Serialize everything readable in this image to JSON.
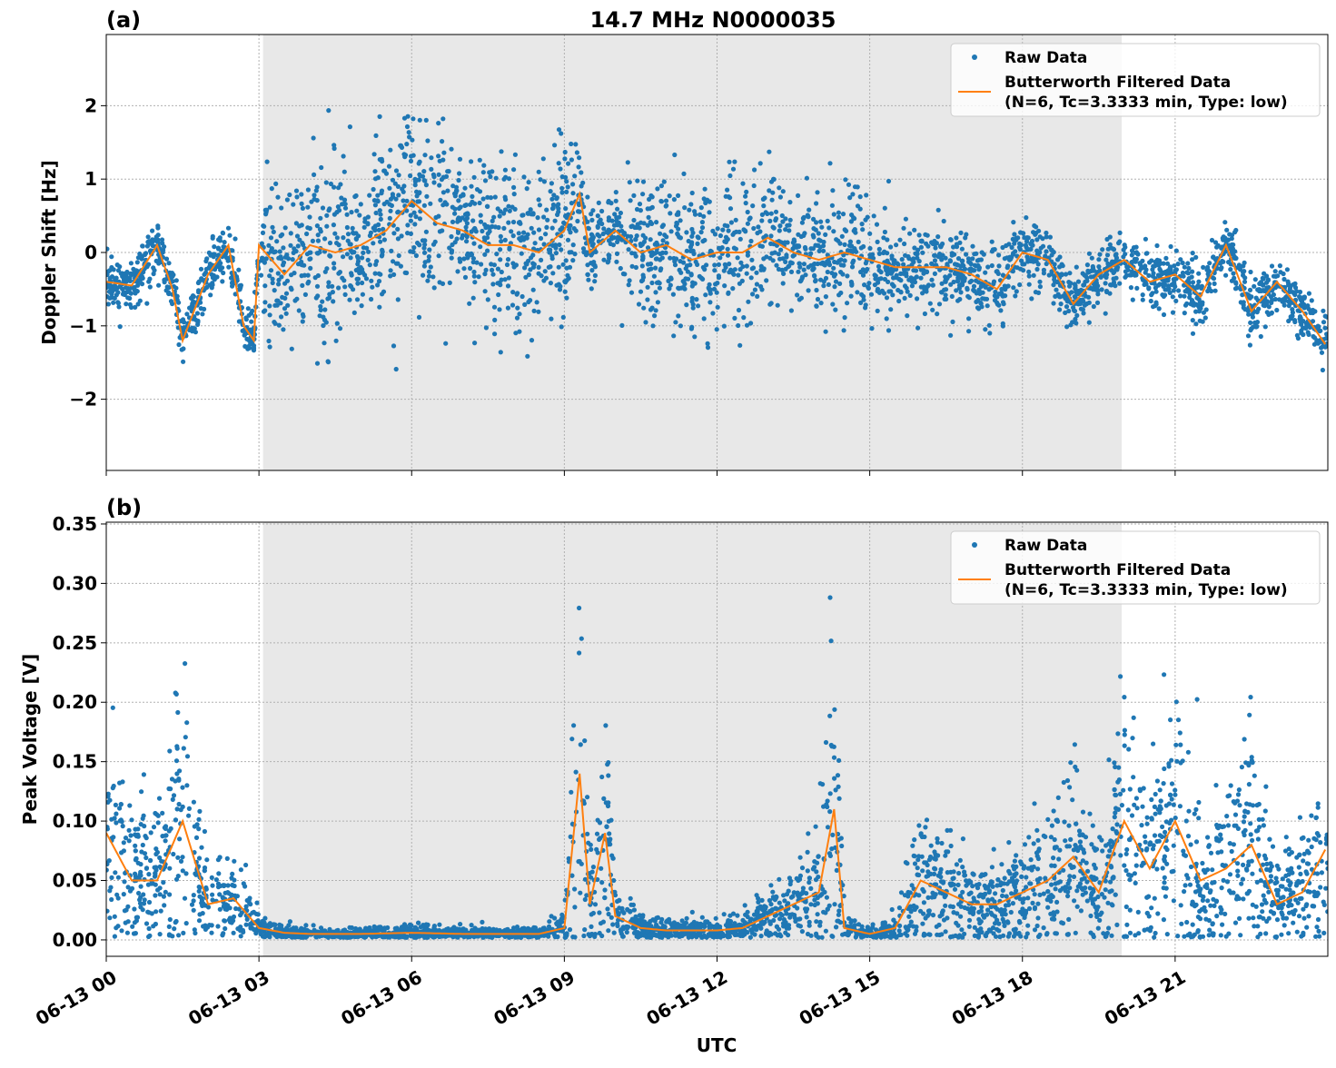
{
  "chart_data": [
    {
      "type": "scatter",
      "panel_label": "(a)",
      "title": "14.7 MHz N0000035",
      "xlabel": "",
      "ylabel": "Doppler Shift [Hz]",
      "xlim_hours": [
        0,
        24
      ],
      "ylim": [
        -2.97,
        2.97
      ],
      "yticks": [
        -2,
        -1,
        0,
        1,
        2
      ],
      "ytick_labels": [
        "−2",
        "−1",
        "0",
        "1",
        "2"
      ],
      "grid": true,
      "legend": "top-right",
      "shaded_interval_hours": [
        3.08,
        19.95
      ],
      "series": [
        {
          "name": "Raw Data",
          "kind": "points",
          "color": "#1f77b4",
          "spread_hours": [
            0,
            3,
            3.1,
            9,
            9.3,
            10,
            10.2,
            13,
            13.5,
            15,
            15.5,
            18,
            18.5,
            24
          ],
          "spread": [
            0.3,
            0.35,
            1.1,
            1.1,
            0.5,
            0.4,
            0.9,
            0.9,
            0.6,
            0.7,
            0.5,
            0.5,
            0.35,
            0.35
          ]
        },
        {
          "name": "Butterworth Filtered Data",
          "name2": "(N=6, Tc=3.3333 min, Type: low)",
          "kind": "line",
          "color": "#ff7f0e",
          "x_hours": [
            0,
            0.5,
            1.0,
            1.3,
            1.5,
            2.0,
            2.4,
            2.7,
            2.9,
            3.0,
            3.5,
            4.0,
            4.5,
            5.0,
            5.5,
            6.0,
            6.5,
            7.0,
            7.5,
            8.0,
            8.5,
            9.0,
            9.3,
            9.5,
            10.0,
            10.5,
            11.0,
            11.5,
            12.0,
            12.5,
            13.0,
            13.5,
            14.0,
            14.5,
            15.0,
            15.5,
            16.0,
            16.5,
            17.0,
            17.5,
            18.0,
            18.5,
            19.0,
            19.5,
            20.0,
            20.5,
            21.0,
            21.5,
            22.0,
            22.5,
            23.0,
            23.5,
            24.0
          ],
          "y": [
            -0.4,
            -0.45,
            0.1,
            -0.5,
            -1.2,
            -0.3,
            0.1,
            -1.0,
            -1.2,
            0.1,
            -0.3,
            0.1,
            0.0,
            0.1,
            0.3,
            0.7,
            0.4,
            0.3,
            0.1,
            0.1,
            0.0,
            0.3,
            0.8,
            0.0,
            0.3,
            0.0,
            0.1,
            -0.1,
            0.0,
            0.0,
            0.2,
            0.0,
            -0.1,
            0.0,
            -0.1,
            -0.2,
            -0.2,
            -0.2,
            -0.3,
            -0.5,
            0.0,
            -0.1,
            -0.7,
            -0.3,
            -0.1,
            -0.4,
            -0.3,
            -0.6,
            0.1,
            -0.8,
            -0.4,
            -0.8,
            -1.3
          ]
        }
      ]
    },
    {
      "type": "scatter",
      "panel_label": "(b)",
      "xlabel": "UTC",
      "ylabel": "Peak Voltage [V]",
      "xlim_hours": [
        0,
        24
      ],
      "ylim": [
        -0.0138,
        0.3515
      ],
      "yticks": [
        0,
        0.05,
        0.1,
        0.15,
        0.2,
        0.25,
        0.3,
        0.35
      ],
      "ytick_labels": [
        "0.00",
        "0.05",
        "0.10",
        "0.15",
        "0.20",
        "0.25",
        "0.30",
        "0.35"
      ],
      "xticks_hours": [
        0,
        3,
        6,
        9,
        12,
        15,
        18,
        21
      ],
      "xtick_labels": [
        "06-13 00",
        "06-13 03",
        "06-13 06",
        "06-13 09",
        "06-13 12",
        "06-13 15",
        "06-13 18",
        "06-13 21"
      ],
      "grid": true,
      "legend": "top-right",
      "shaded_interval_hours": [
        3.08,
        19.95
      ],
      "series": [
        {
          "name": "Raw Data",
          "kind": "points",
          "color": "#1f77b4",
          "spread_ratio": 0.6
        },
        {
          "name": "Butterworth Filtered Data",
          "name2": "(N=6, Tc=3.3333 min, Type: low)",
          "kind": "line",
          "color": "#ff7f0e",
          "x_hours": [
            0,
            0.5,
            1.0,
            1.5,
            2.0,
            2.5,
            3.0,
            3.5,
            4,
            5,
            6,
            7,
            8,
            8.5,
            9.0,
            9.3,
            9.5,
            9.8,
            10.0,
            10.5,
            11,
            11.5,
            12,
            12.5,
            13,
            13.5,
            14,
            14.3,
            14.5,
            15,
            15.5,
            16,
            16.5,
            17,
            17.5,
            18,
            18.5,
            19,
            19.5,
            20,
            20.5,
            21,
            21.5,
            22,
            22.5,
            23,
            23.5,
            24
          ],
          "y": [
            0.09,
            0.05,
            0.05,
            0.1,
            0.03,
            0.035,
            0.01,
            0.006,
            0.005,
            0.005,
            0.006,
            0.005,
            0.005,
            0.005,
            0.01,
            0.14,
            0.03,
            0.09,
            0.02,
            0.01,
            0.008,
            0.008,
            0.008,
            0.01,
            0.02,
            0.03,
            0.04,
            0.11,
            0.01,
            0.005,
            0.01,
            0.05,
            0.04,
            0.03,
            0.03,
            0.04,
            0.05,
            0.07,
            0.04,
            0.1,
            0.06,
            0.1,
            0.05,
            0.06,
            0.08,
            0.03,
            0.04,
            0.08
          ]
        }
      ]
    }
  ]
}
